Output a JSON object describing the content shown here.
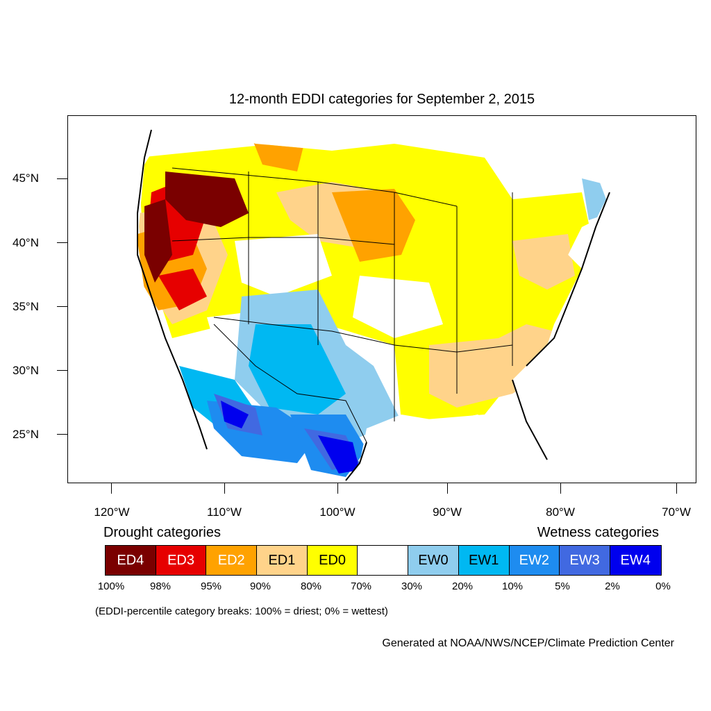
{
  "title": "12-month EDDI categories for September 2, 2015",
  "map": {
    "lat_labels": [
      "45°N",
      "40°N",
      "35°N",
      "30°N",
      "25°N"
    ],
    "lon_labels": [
      "120°W",
      "110°W",
      "100°W",
      "90°W",
      "80°W",
      "70°W"
    ]
  },
  "legend": {
    "drought_heading": "Drought categories",
    "wetness_heading": "Wetness categories",
    "categories": [
      {
        "label": "ED4",
        "color": "#7a0000",
        "text_color": "#ffffff"
      },
      {
        "label": "ED3",
        "color": "#e60000",
        "text_color": "#ffffff"
      },
      {
        "label": "ED2",
        "color": "#ffa200",
        "text_color": "#ffffff"
      },
      {
        "label": "ED1",
        "color": "#ffd38a",
        "text_color": "#000000"
      },
      {
        "label": "ED0",
        "color": "#ffff00",
        "text_color": "#000000"
      },
      {
        "label": "",
        "color": "#ffffff",
        "text_color": "#000000"
      },
      {
        "label": "EW0",
        "color": "#8fcdee",
        "text_color": "#000000"
      },
      {
        "label": "EW1",
        "color": "#00b8f2",
        "text_color": "#000000"
      },
      {
        "label": "EW2",
        "color": "#1e8cf0",
        "text_color": "#ffffff"
      },
      {
        "label": "EW3",
        "color": "#4169e1",
        "text_color": "#ffffff"
      },
      {
        "label": "EW4",
        "color": "#0000ee",
        "text_color": "#ffffff"
      }
    ],
    "breaks": [
      "100%",
      "98%",
      "95%",
      "90%",
      "80%",
      "70%",
      "30%",
      "20%",
      "10%",
      "5%",
      "2%",
      "0%"
    ]
  },
  "note": "(EDDI-percentile category breaks: 100% = driest; 0% = wettest)",
  "credit": "Generated at NOAA/NWS/NCEP/Climate Prediction Center"
}
